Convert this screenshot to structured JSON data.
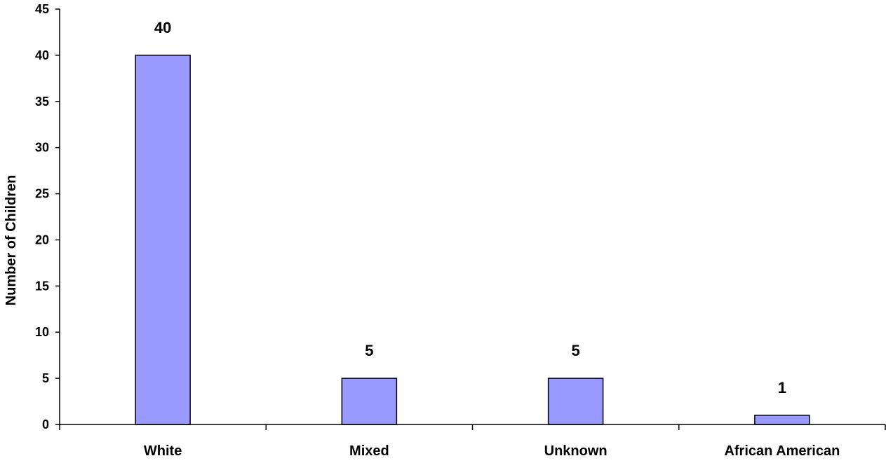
{
  "chart_data": {
    "type": "bar",
    "title": "",
    "xlabel": "",
    "ylabel": "Number of Children",
    "categories": [
      "White",
      "Mixed",
      "Unknown",
      "African American"
    ],
    "values": [
      40,
      5,
      5,
      1
    ],
    "data_labels": [
      "40",
      "5",
      "5",
      "1"
    ],
    "ylim": [
      0,
      45
    ],
    "yticks": [
      0,
      5,
      10,
      15,
      20,
      25,
      30,
      35,
      40,
      45
    ],
    "ytick_labels": [
      "0",
      "5",
      "10",
      "15",
      "20",
      "25",
      "30",
      "35",
      "40",
      "45"
    ],
    "grid": false,
    "legend": "none",
    "colors": {
      "bar_fill": "#9999ff",
      "bar_stroke": "#000000",
      "axis": "#000000",
      "text": "#000000"
    }
  }
}
